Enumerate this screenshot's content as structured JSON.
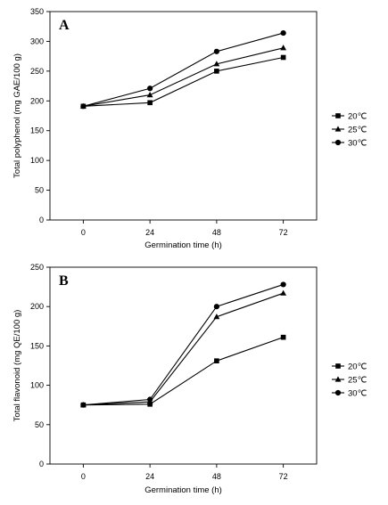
{
  "chart_data": [
    {
      "type": "line",
      "panel_label": "A",
      "x": [
        0,
        24,
        48,
        72
      ],
      "xlabel": "Germination time (h)",
      "ylabel": "Total polyphenol (mg GAE/100 g)",
      "ylim": [
        0,
        350
      ],
      "yticks": [
        0,
        50,
        100,
        150,
        200,
        250,
        300,
        350
      ],
      "grid": false,
      "legend_position": "right",
      "series": [
        {
          "name": "20℃",
          "marker": "square",
          "values": [
            191,
            197,
            250,
            273
          ]
        },
        {
          "name": "25℃",
          "marker": "triangle",
          "values": [
            191,
            210,
            262,
            289
          ]
        },
        {
          "name": "30℃",
          "marker": "circle",
          "values": [
            191,
            221,
            283,
            314
          ]
        }
      ]
    },
    {
      "type": "line",
      "panel_label": "B",
      "x": [
        0,
        24,
        48,
        72
      ],
      "xlabel": "Germination time (h)",
      "ylabel": "Total flavonoid (mg QE/100 g)",
      "ylim": [
        0,
        250
      ],
      "yticks": [
        0,
        50,
        100,
        150,
        200,
        250
      ],
      "grid": false,
      "legend_position": "right",
      "series": [
        {
          "name": "20℃",
          "marker": "square",
          "values": [
            75,
            76,
            131,
            161
          ]
        },
        {
          "name": "25℃",
          "marker": "triangle",
          "values": [
            75,
            79,
            187,
            217
          ]
        },
        {
          "name": "30℃",
          "marker": "circle",
          "values": [
            75,
            82,
            200,
            228
          ]
        }
      ]
    }
  ]
}
